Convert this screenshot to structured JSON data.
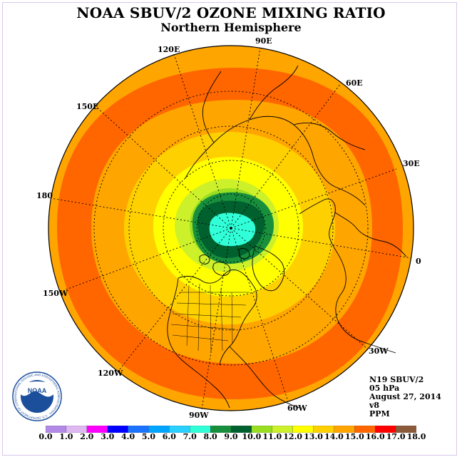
{
  "title": "NOAA SBUV/2 OZONE MIXING RATIO",
  "subtitle": "Northern Hemisphere",
  "longitude_labels": {
    "lon_90e": "90E",
    "lon_120e": "120E",
    "lon_60e": "60E",
    "lon_150e": "150E",
    "lon_30e": "30E",
    "lon_180": "180",
    "lon_0": "0",
    "lon_150w": "150W",
    "lon_30w": "30W",
    "lon_120w": "120W",
    "lon_60w": "60W",
    "lon_90w": "90W"
  },
  "info": {
    "instrument": "N19 SBUV/2",
    "level": "05 hPa",
    "date": "August 27, 2014",
    "version": "v8",
    "units": "PPM"
  },
  "logo": {
    "text": "NOAA",
    "ring_text": "NATIONAL OCEANIC AND ATMOSPHERIC ADMINISTRATION · U.S. DEPARTMENT OF COMMERCE"
  },
  "colorbar": {
    "ticks": [
      "0.0",
      "1.0",
      "2.0",
      "3.0",
      "4.0",
      "5.0",
      "6.0",
      "7.0",
      "8.0",
      "9.0",
      "10.0",
      "11.0",
      "12.0",
      "13.0",
      "14.0",
      "15.0",
      "16.0",
      "17.0",
      "18.0"
    ],
    "colors": [
      "#b389e8",
      "#dfb8f2",
      "#ff00ff",
      "#0000ff",
      "#1973ff",
      "#00a5ff",
      "#2ad0ff",
      "#30ffd8",
      "#178f3c",
      "#00602e",
      "#9ade22",
      "#ccf02a",
      "#ffff00",
      "#ffd000",
      "#ffa500",
      "#ff6600",
      "#ff0000",
      "#8b5a3a"
    ]
  },
  "map_fill_colors": {
    "c8": "#178f3c",
    "c9": "#00602e",
    "c7": "#30ffd8",
    "c10": "#9ade22",
    "c11": "#ccf02a",
    "c12": "#ffff00",
    "c13": "#ffd000",
    "c14": "#ffa500",
    "c15": "#ff6600"
  }
}
